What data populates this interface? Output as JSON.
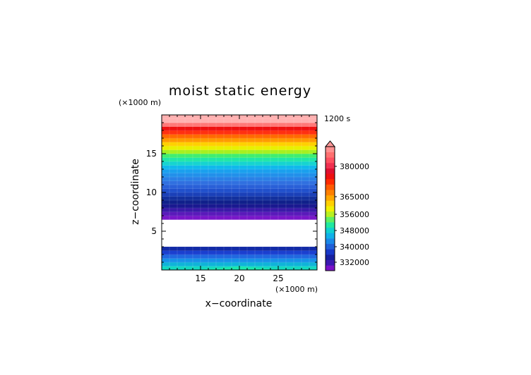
{
  "chart_data": {
    "type": "heatmap",
    "title": "moist static energy",
    "time_label": "1200 s",
    "xlabel": "x−coordinate",
    "ylabel": "z−coordinate",
    "x_unit": "(×1000 m)",
    "y_unit": "(×1000 m)",
    "xlim": [
      10,
      30
    ],
    "ylim": [
      0,
      20
    ],
    "xticks": [
      15,
      20,
      25
    ],
    "yticks": [
      5,
      10,
      15
    ],
    "blank_z_range": [
      3,
      6.5
    ],
    "layers": [
      {
        "z0": 0.0,
        "z1": 0.5,
        "color": "#13d9c0"
      },
      {
        "z0": 0.5,
        "z1": 1.0,
        "color": "#0fb4d8"
      },
      {
        "z0": 1.0,
        "z1": 1.5,
        "color": "#1890e8"
      },
      {
        "z0": 1.5,
        "z1": 2.0,
        "color": "#2068e0"
      },
      {
        "z0": 2.0,
        "z1": 2.5,
        "color": "#1a3fd0"
      },
      {
        "z0": 2.5,
        "z1": 3.0,
        "color": "#122aa6"
      },
      {
        "z0": 6.5,
        "z1": 7.0,
        "color": "#7a17c9"
      },
      {
        "z0": 7.0,
        "z1": 7.5,
        "color": "#5a1aba"
      },
      {
        "z0": 7.5,
        "z1": 8.0,
        "color": "#3a1aa8"
      },
      {
        "z0": 8.0,
        "z1": 8.5,
        "color": "#1a1890"
      },
      {
        "z0": 8.5,
        "z1": 9.0,
        "color": "#10208a"
      },
      {
        "z0": 9.0,
        "z1": 9.5,
        "color": "#13309c"
      },
      {
        "z0": 9.5,
        "z1": 10.0,
        "color": "#1a40b8"
      },
      {
        "z0": 10.0,
        "z1": 10.5,
        "color": "#2050cc"
      },
      {
        "z0": 10.5,
        "z1": 11.0,
        "color": "#2a60d8"
      },
      {
        "z0": 11.0,
        "z1": 11.5,
        "color": "#3070e0"
      },
      {
        "z0": 11.5,
        "z1": 12.0,
        "color": "#2a80e6"
      },
      {
        "z0": 12.0,
        "z1": 12.5,
        "color": "#2290ea"
      },
      {
        "z0": 12.5,
        "z1": 13.0,
        "color": "#1aa0ee"
      },
      {
        "z0": 13.0,
        "z1": 13.5,
        "color": "#10b8ec"
      },
      {
        "z0": 13.5,
        "z1": 14.0,
        "color": "#16d4d0"
      },
      {
        "z0": 14.0,
        "z1": 14.5,
        "color": "#20e6a8"
      },
      {
        "z0": 14.5,
        "z1": 15.0,
        "color": "#40ee70"
      },
      {
        "z0": 15.0,
        "z1": 15.5,
        "color": "#a6f020"
      },
      {
        "z0": 15.5,
        "z1": 16.0,
        "color": "#e8f000"
      },
      {
        "z0": 16.0,
        "z1": 16.5,
        "color": "#ffd000"
      },
      {
        "z0": 16.5,
        "z1": 17.0,
        "color": "#ff9a00"
      },
      {
        "z0": 17.0,
        "z1": 17.5,
        "color": "#ff6a00"
      },
      {
        "z0": 17.5,
        "z1": 18.0,
        "color": "#ff3010"
      },
      {
        "z0": 18.0,
        "z1": 18.5,
        "color": "#ee1010"
      },
      {
        "z0": 18.5,
        "z1": 19.0,
        "color": "#ff7878"
      },
      {
        "z0": 19.0,
        "z1": 20.0,
        "color": "#ffb0b0"
      }
    ],
    "mound": {
      "peak_x": 20,
      "base_half_width": 5.5,
      "peak_height": 0.5,
      "color": "#1ae8b0"
    },
    "colorbar": {
      "labels": [
        "380000",
        "365000",
        "356000",
        "348000",
        "340000",
        "332000"
      ],
      "colors": [
        "#7a10c8",
        "#3a18b0",
        "#1820a0",
        "#1838c8",
        "#2060d8",
        "#1a88e8",
        "#10b0e8",
        "#10d0d0",
        "#20e8a0",
        "#60f060",
        "#b8f020",
        "#f0f000",
        "#ffd000",
        "#ffa800",
        "#ff8000",
        "#ff5a00",
        "#ff2a00",
        "#ee1010",
        "#e01030",
        "#f03050",
        "#ff5060",
        "#ff7070",
        "#ff9090"
      ],
      "extend_color": "#ff9898"
    }
  }
}
